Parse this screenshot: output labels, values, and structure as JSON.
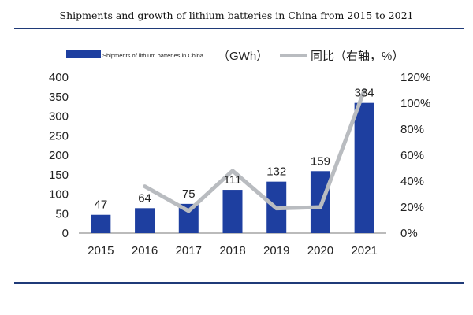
{
  "colors": {
    "bar": "#1e3fa0",
    "line": "#b9bcc0",
    "rule": "#1f3a78",
    "text": "#222222"
  },
  "chart_data": {
    "type": "bar",
    "title": "Shipments and growth of lithium batteries in China from 2015 to 2021",
    "categories": [
      "2015",
      "2016",
      "2017",
      "2018",
      "2019",
      "2020",
      "2021"
    ],
    "series": [
      {
        "name": "Shipments of lithium batteries in China",
        "unit_label": "（GWh）",
        "type": "bar",
        "axis": "left",
        "values": [
          47,
          64,
          75,
          111,
          132,
          159,
          334
        ]
      },
      {
        "name": "同比（右轴，%）",
        "type": "line",
        "axis": "right",
        "values": [
          null,
          36,
          17,
          48,
          19,
          20,
          110
        ]
      }
    ],
    "data_labels": [
      "47",
      "64",
      "75",
      "111",
      "132",
      "159",
      "334"
    ],
    "y_left": {
      "ylim": [
        0,
        400
      ],
      "ticks": [
        "0",
        "50",
        "100",
        "150",
        "200",
        "250",
        "300",
        "350",
        "400"
      ]
    },
    "y_right": {
      "ylim": [
        0,
        120
      ],
      "ticks": [
        "0%",
        "20%",
        "40%",
        "60%",
        "80%",
        "100%",
        "120%"
      ]
    },
    "legend": "top",
    "grid": false
  }
}
